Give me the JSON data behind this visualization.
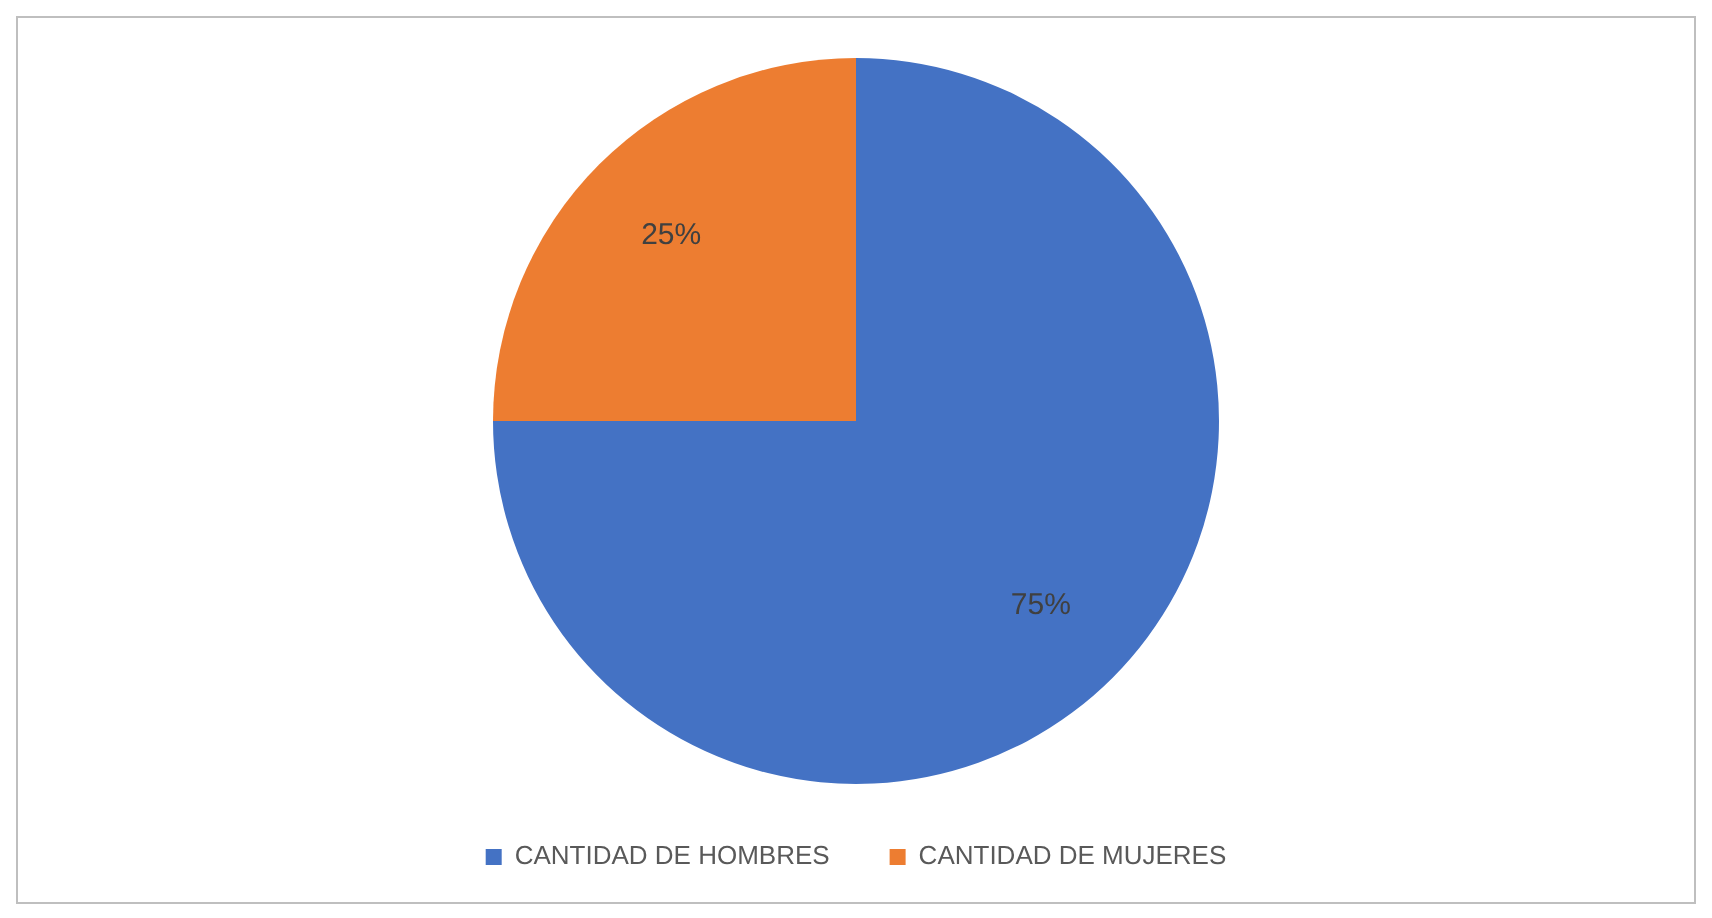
{
  "chart_data": {
    "type": "pie",
    "categories": [
      "CANTIDAD DE HOMBRES",
      "CANTIDAD DE MUJERES"
    ],
    "values": [
      75,
      25
    ],
    "colors": [
      "#4472c4",
      "#ed7d31"
    ],
    "value_labels": [
      "75%",
      "25%"
    ],
    "legend": "bottom"
  }
}
